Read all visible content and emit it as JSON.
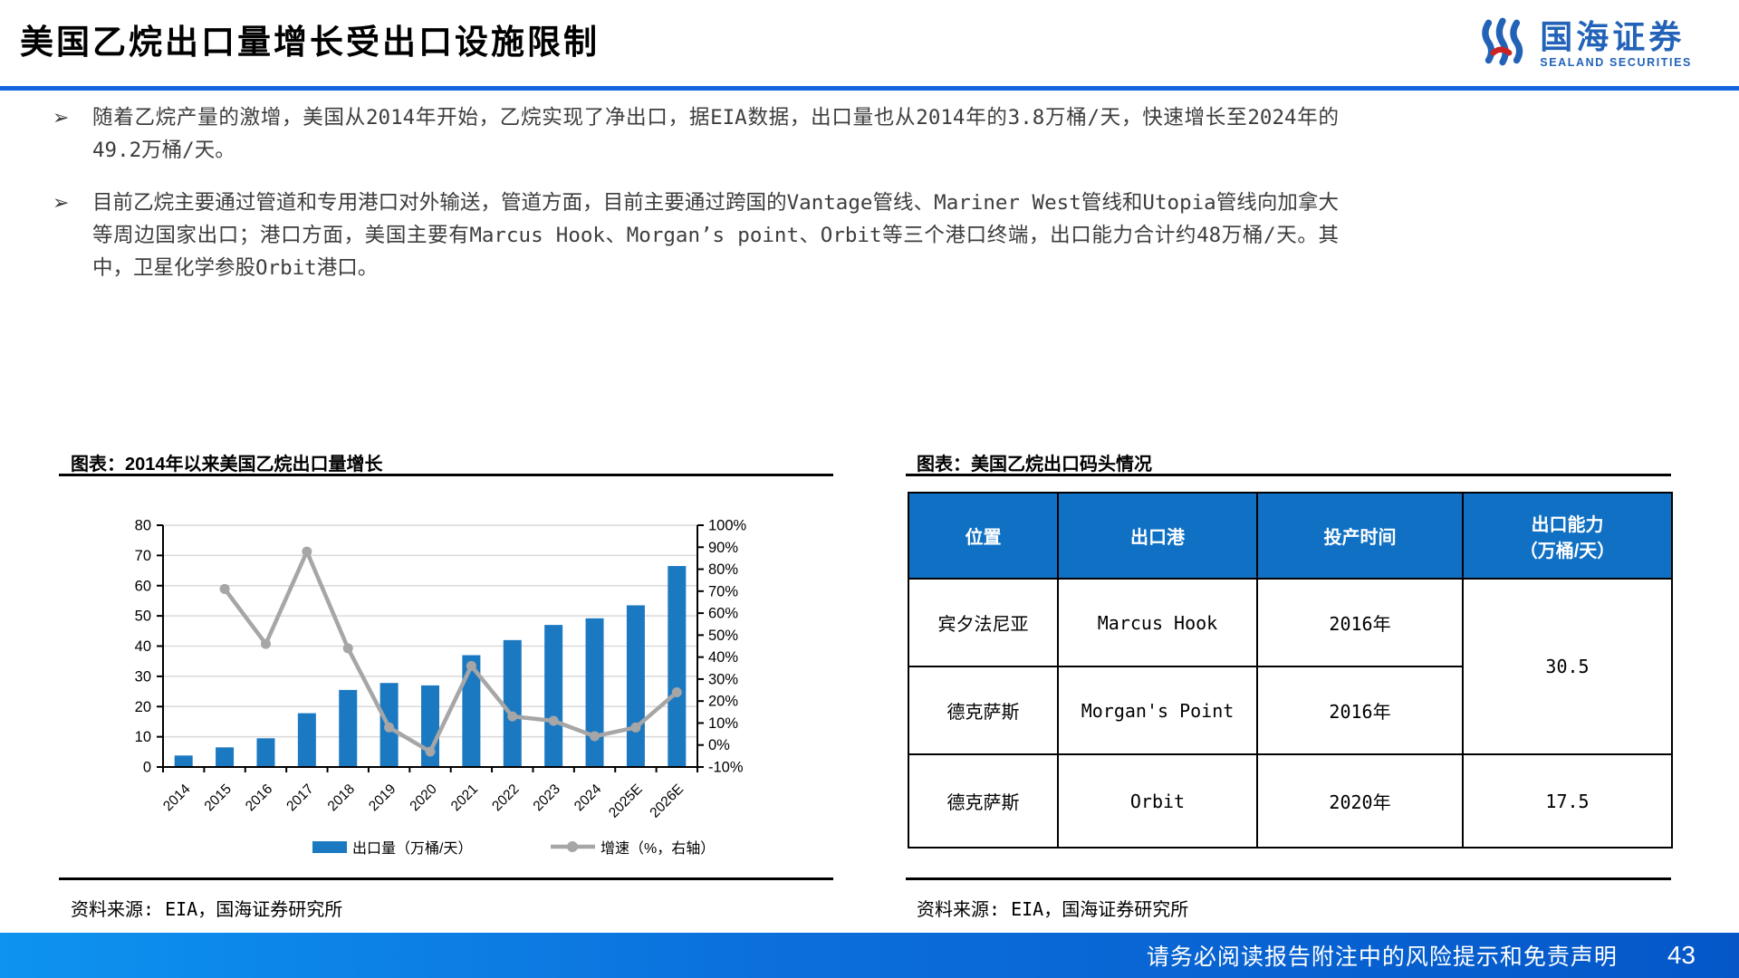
{
  "header": {
    "title": "美国乙烷出口量增长受出口设施限制",
    "logo_cn": "国海证券",
    "logo_en": "SEALAND SECURITIES"
  },
  "bullets": {
    "marker": "➢",
    "item1": "随着乙烷产量的激增，美国从2014年开始，乙烷实现了净出口，据EIA数据，出口量也从2014年的3.8万桶/天，快速增长至2024年的49.2万桶/天。",
    "item2": "目前乙烷主要通过管道和专用港口对外输送，管道方面，目前主要通过跨国的Vantage管线、Mariner West管线和Utopia管线向加拿大等周边国家出口；港口方面，美国主要有Marcus Hook、Morgan’s point、Orbit等三个港口终端，出口能力合计约48万桶/天。其中，卫星化学参股Orbit港口。"
  },
  "chart": {
    "title": "图表：2014年以来美国乙烷出口量增长",
    "source": "资料来源: EIA，国海证券研究所"
  },
  "chart_data": {
    "type": "bar+line",
    "categories": [
      "2014",
      "2015",
      "2016",
      "2017",
      "2018",
      "2019",
      "2020",
      "2021",
      "2022",
      "2023",
      "2024",
      "2025E",
      "2026E"
    ],
    "series": [
      {
        "name": "出口量（万桶/天）",
        "type": "bar",
        "axis": "left",
        "values": [
          3.8,
          6.5,
          9.5,
          17.8,
          25.5,
          27.8,
          27.0,
          37.0,
          42.0,
          47.0,
          49.2,
          53.5,
          66.5
        ]
      },
      {
        "name": "增速（%，右轴）",
        "type": "line",
        "axis": "right",
        "values": [
          null,
          71,
          46,
          88,
          44,
          8,
          -3,
          36,
          13,
          11,
          4,
          8,
          24
        ]
      }
    ],
    "ylim_left": [
      0,
      80
    ],
    "ytick_left": 10,
    "ylim_right": [
      -10,
      100
    ],
    "ytick_right": 10,
    "grid": true,
    "legend_position": "bottom",
    "colors": {
      "bar": "#1B79C2",
      "line": "#A6A6A6",
      "grid": "#D9D9D9",
      "axis": "#000000"
    }
  },
  "table": {
    "title": "图表：美国乙烷出口码头情况",
    "source": "资料来源: EIA，国海证券研究所",
    "headers": [
      "位置",
      "出口港",
      "投产时间",
      "出口能力\n（万桶/天）"
    ],
    "rows": [
      {
        "location": "宾夕法尼亚",
        "port": "Marcus Hook",
        "start": "2016年"
      },
      {
        "location": "德克萨斯",
        "port": "Morgan's Point",
        "start": "2016年"
      },
      {
        "location": "德克萨斯",
        "port": "Orbit",
        "start": "2020年",
        "capacity": "17.5"
      }
    ],
    "merged_capacity": "30.5"
  },
  "footer": {
    "disclaimer": "请务必阅读报告附注中的风险提示和免责声明",
    "page": "43"
  }
}
